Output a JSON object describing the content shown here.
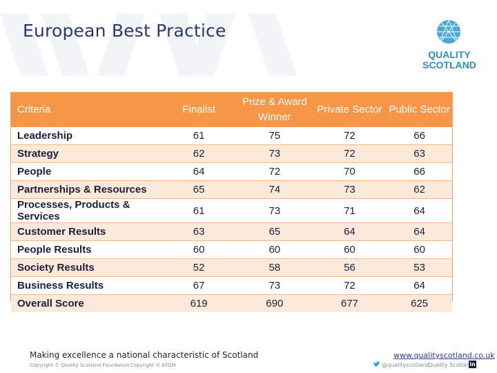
{
  "slide": {
    "title": "European Best Practice",
    "brand_color": "#f79646",
    "title_color": "#2a3a6e"
  },
  "logo": {
    "icon": "quality-scotland-globe-icon",
    "line1": "QUALITY",
    "line2": "SCOTLAND"
  },
  "table": {
    "headers": {
      "criteria": "Criteria",
      "finalist": "Finalist",
      "prize_line1": "Prize & Award",
      "prize_line2": "Winner",
      "private": "Private Sector",
      "public": "Public Sector"
    },
    "rows": [
      {
        "criteria": "Leadership",
        "finalist": "61",
        "prize": "75",
        "private": "72",
        "public": "66"
      },
      {
        "criteria": "Strategy",
        "finalist": "62",
        "prize": "73",
        "private": "72",
        "public": "63"
      },
      {
        "criteria": "People",
        "finalist": "64",
        "prize": "72",
        "private": "70",
        "public": "66"
      },
      {
        "criteria": "Partnerships & Resources",
        "finalist": "65",
        "prize": "74",
        "private": "73",
        "public": "62"
      },
      {
        "criteria": "Processes, Products & Services",
        "finalist": "61",
        "prize": "73",
        "private": "71",
        "public": "64"
      },
      {
        "criteria": "Customer Results",
        "finalist": "63",
        "prize": "65",
        "private": "64",
        "public": "64"
      },
      {
        "criteria": "People Results",
        "finalist": "60",
        "prize": "60",
        "private": "60",
        "public": "60"
      },
      {
        "criteria": "Society Results",
        "finalist": "52",
        "prize": "58",
        "private": "56",
        "public": "53"
      },
      {
        "criteria": "Business Results",
        "finalist": "67",
        "prize": "73",
        "private": "72",
        "public": "64"
      },
      {
        "criteria": "Overall Score",
        "finalist": "619",
        "prize": "690",
        "private": "677",
        "public": "625"
      }
    ]
  },
  "footer": {
    "tagline": "Making excellence a national characteristic of Scotland",
    "copyright1": "Copyright © Quality Scotland Foundation",
    "copyright2": "Copyright © EFQM",
    "url": "www.qualityscotland.co.uk",
    "twitter": "@qualityscotland",
    "linkedin_name": "Quality Scotland",
    "linkedin_glyph": "in"
  }
}
